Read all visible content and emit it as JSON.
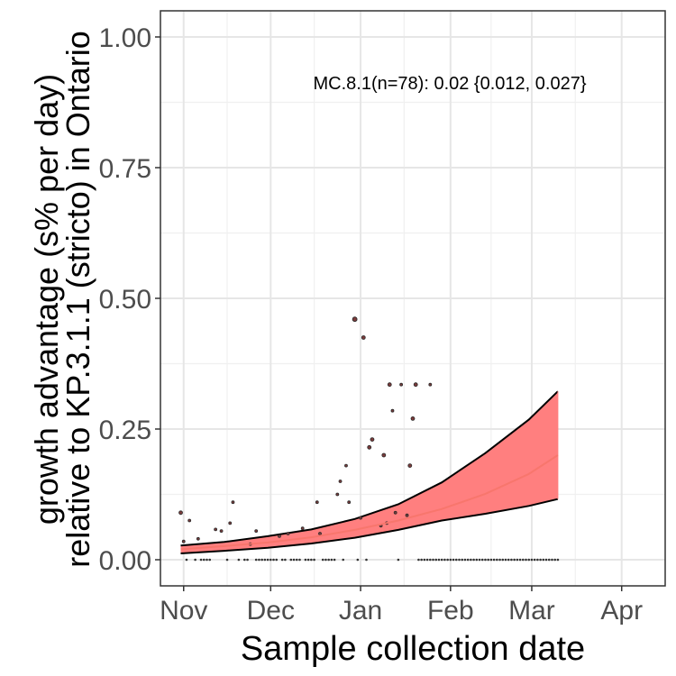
{
  "chart_data": {
    "type": "scatter",
    "title": "",
    "xlabel": "Sample collection date",
    "ylabel_lines": [
      "growth advantage (s% per day)",
      "relative to KP.3.1.1 (stricto) in Ontario"
    ],
    "annotation": "MC.8.1(n=78): 0.02 {0.012, 0.027}",
    "x_ticks": [
      {
        "label": "Nov",
        "date": "2024-11-01"
      },
      {
        "label": "Dec",
        "date": "2024-12-01"
      },
      {
        "label": "Jan",
        "date": "2025-01-01"
      },
      {
        "label": "Feb",
        "date": "2025-02-01"
      },
      {
        "label": "Mar",
        "date": "2025-03-01"
      },
      {
        "label": "Apr",
        "date": "2025-04-01"
      }
    ],
    "xlim": [
      "2024-10-24",
      "2025-04-16"
    ],
    "y_ticks": [
      {
        "label": "0.00",
        "value": 0.0
      },
      {
        "label": "0.25",
        "value": 0.25
      },
      {
        "label": "0.50",
        "value": 0.5
      },
      {
        "label": "0.75",
        "value": 0.75
      },
      {
        "label": "1.00",
        "value": 1.0
      }
    ],
    "ylim": [
      -0.05,
      1.05
    ],
    "grid": true,
    "colors": {
      "fit_line": "#f8766d",
      "ribbon": "#ff7f7f",
      "ribbon_edge": "#000000",
      "points": "#7a3b3b",
      "grid_major": "#e6e6e6",
      "panel_border": "#333333"
    },
    "fit_curve": [
      {
        "date": "2024-10-31",
        "fit": 0.02,
        "lower": 0.012,
        "upper": 0.027
      },
      {
        "date": "2024-11-15",
        "fit": 0.026,
        "lower": 0.017,
        "upper": 0.034
      },
      {
        "date": "2024-11-30",
        "fit": 0.033,
        "lower": 0.023,
        "upper": 0.045
      },
      {
        "date": "2024-12-15",
        "fit": 0.043,
        "lower": 0.031,
        "upper": 0.058
      },
      {
        "date": "2024-12-30",
        "fit": 0.057,
        "lower": 0.042,
        "upper": 0.078
      },
      {
        "date": "2025-01-14",
        "fit": 0.075,
        "lower": 0.057,
        "upper": 0.106
      },
      {
        "date": "2025-01-29",
        "fit": 0.097,
        "lower": 0.075,
        "upper": 0.148
      },
      {
        "date": "2025-02-13",
        "fit": 0.126,
        "lower": 0.088,
        "upper": 0.204
      },
      {
        "date": "2025-02-28",
        "fit": 0.164,
        "lower": 0.103,
        "upper": 0.268
      },
      {
        "date": "2025-03-10",
        "fit": 0.2,
        "lower": 0.116,
        "upper": 0.322
      }
    ],
    "points": [
      {
        "date": "2024-10-31",
        "y": 0.09,
        "size": 2
      },
      {
        "date": "2024-11-01",
        "y": 0.035,
        "size": 1.5
      },
      {
        "date": "2024-11-03",
        "y": 0.075,
        "size": 1.5
      },
      {
        "date": "2024-11-06",
        "y": 0.04,
        "size": 1.5
      },
      {
        "date": "2024-11-12",
        "y": 0.058,
        "size": 1.5
      },
      {
        "date": "2024-11-14",
        "y": 0.055,
        "size": 1.5
      },
      {
        "date": "2024-11-17",
        "y": 0.07,
        "size": 1.5
      },
      {
        "date": "2024-11-18",
        "y": 0.11,
        "size": 1.5
      },
      {
        "date": "2024-11-24",
        "y": 0.03,
        "size": 1.5
      },
      {
        "date": "2024-11-26",
        "y": 0.055,
        "size": 1.5
      },
      {
        "date": "2024-12-04",
        "y": 0.045,
        "size": 1.5
      },
      {
        "date": "2024-12-07",
        "y": 0.05,
        "size": 1.5
      },
      {
        "date": "2024-12-12",
        "y": 0.06,
        "size": 1.5
      },
      {
        "date": "2024-12-17",
        "y": 0.11,
        "size": 1.5
      },
      {
        "date": "2024-12-18",
        "y": 0.05,
        "size": 1.5
      },
      {
        "date": "2024-12-24",
        "y": 0.125,
        "size": 1.5
      },
      {
        "date": "2024-12-25",
        "y": 0.15,
        "size": 1.5
      },
      {
        "date": "2024-12-27",
        "y": 0.18,
        "size": 1.5
      },
      {
        "date": "2024-12-28",
        "y": 0.11,
        "size": 1.5
      },
      {
        "date": "2024-12-30",
        "y": 0.46,
        "size": 2.5
      },
      {
        "date": "2025-01-01",
        "y": 0.08,
        "size": 1.5
      },
      {
        "date": "2025-01-02",
        "y": 0.425,
        "size": 2
      },
      {
        "date": "2025-01-04",
        "y": 0.215,
        "size": 2
      },
      {
        "date": "2025-01-05",
        "y": 0.23,
        "size": 2
      },
      {
        "date": "2025-01-08",
        "y": 0.065,
        "size": 1.5
      },
      {
        "date": "2025-01-09",
        "y": 0.2,
        "size": 2
      },
      {
        "date": "2025-01-10",
        "y": 0.07,
        "size": 1.5
      },
      {
        "date": "2025-01-11",
        "y": 0.335,
        "size": 2
      },
      {
        "date": "2025-01-12",
        "y": 0.285,
        "size": 1.5
      },
      {
        "date": "2025-01-13",
        "y": 0.09,
        "size": 1.5
      },
      {
        "date": "2025-01-15",
        "y": 0.335,
        "size": 1.5
      },
      {
        "date": "2025-01-17",
        "y": 0.085,
        "size": 1.5
      },
      {
        "date": "2025-01-18",
        "y": 0.18,
        "size": 2
      },
      {
        "date": "2025-01-19",
        "y": 0.27,
        "size": 2
      },
      {
        "date": "2025-01-20",
        "y": 0.335,
        "size": 2
      },
      {
        "date": "2025-01-25",
        "y": 0.335,
        "size": 1.5
      }
    ],
    "zero_marks": {
      "dates": [
        "2024-11-02",
        "2024-11-05",
        "2024-11-07",
        "2024-11-08",
        "2024-11-09",
        "2024-11-10",
        "2024-11-16",
        "2024-11-20",
        "2024-11-22",
        "2024-11-23",
        "2024-11-26",
        "2024-11-27",
        "2024-11-28",
        "2024-11-29",
        "2024-11-30",
        "2024-12-01",
        "2024-12-02",
        "2024-12-03",
        "2024-12-05",
        "2024-12-06",
        "2024-12-08",
        "2024-12-09",
        "2024-12-10",
        "2024-12-11",
        "2024-12-13",
        "2024-12-14",
        "2024-12-15",
        "2024-12-16",
        "2024-12-19",
        "2024-12-20",
        "2024-12-21",
        "2024-12-22",
        "2024-12-23",
        "2024-12-26",
        "2024-12-31",
        "2025-01-03",
        "2025-01-14"
      ],
      "dense_from": "2025-01-21",
      "dense_to": "2025-03-10"
    }
  }
}
